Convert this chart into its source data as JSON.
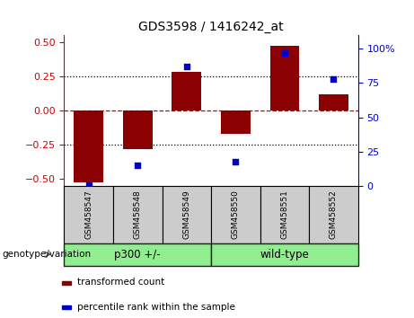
{
  "title": "GDS3598 / 1416242_at",
  "samples": [
    "GSM458547",
    "GSM458548",
    "GSM458549",
    "GSM458550",
    "GSM458551",
    "GSM458552"
  ],
  "transformed_count": [
    -0.52,
    -0.28,
    0.28,
    -0.17,
    0.47,
    0.12
  ],
  "percentile_rank": [
    1,
    15,
    87,
    18,
    97,
    78
  ],
  "group_label_prefix": "genotype/variation",
  "groups": [
    {
      "label": "p300 +/-",
      "start": 0,
      "end": 2
    },
    {
      "label": "wild-type",
      "start": 3,
      "end": 5
    }
  ],
  "group_color": "#90ee90",
  "bar_color": "#8b0000",
  "dot_color": "#0000cd",
  "ylim_left": [
    -0.55,
    0.55
  ],
  "ylim_right": [
    0,
    110
  ],
  "yticks_left": [
    -0.5,
    -0.25,
    0,
    0.25,
    0.5
  ],
  "yticks_right": [
    0,
    25,
    50,
    75,
    100
  ],
  "hlines_dotted": [
    -0.25,
    0.25
  ],
  "hline_zero_color": "#cc0000",
  "hline_dot_color": "#000000",
  "legend_items": [
    {
      "label": "transformed count",
      "color": "#8b0000"
    },
    {
      "label": "percentile rank within the sample",
      "color": "#0000cd"
    }
  ],
  "bg_color": "#ffffff",
  "sample_box_color": "#cccccc",
  "bar_width": 0.6,
  "left_axis_color": "#cc0000",
  "right_axis_color": "#0000cd"
}
